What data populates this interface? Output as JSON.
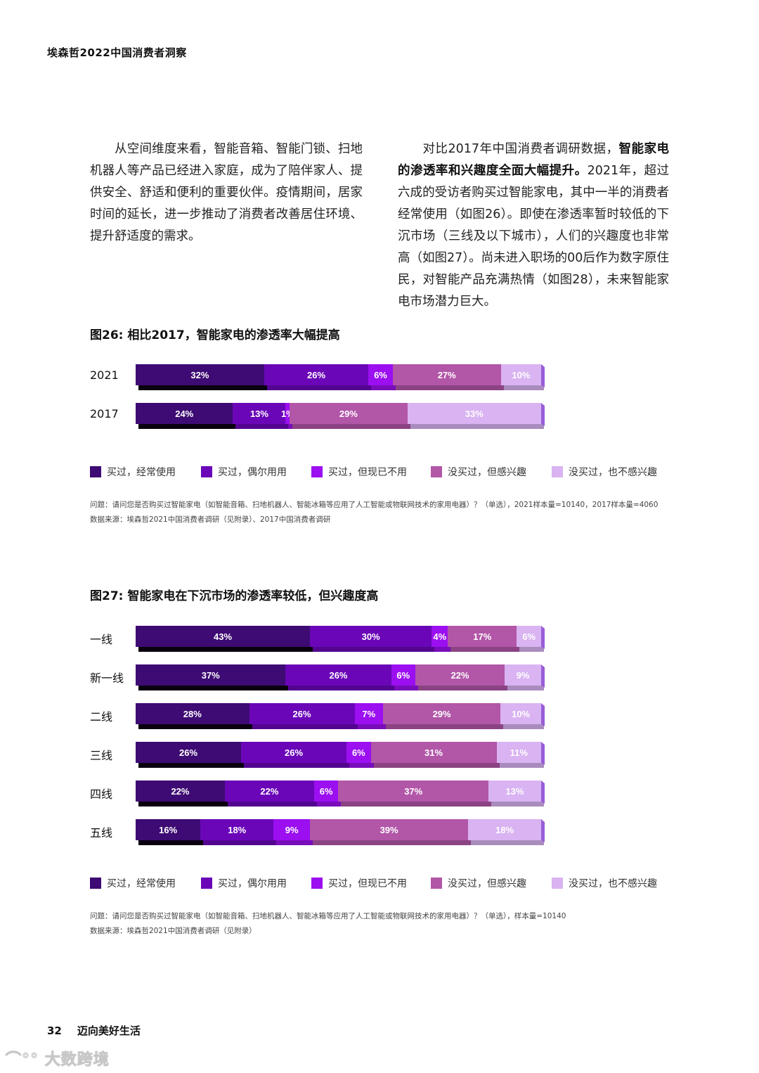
{
  "header": {
    "title": "埃森哲2022中国消费者洞察"
  },
  "body_text": {
    "left": "从空间维度来看，智能音箱、智能门锁、扫地机器人等产品已经进入家庭，成为了陪伴家人、提供安全、舒适和便利的重要伙伴。疫情期间，居家时间的延长，进一步推动了消费者改善居住环境、提升舒适度的需求。",
    "right_pre": "对比2017年中国消费者调研数据，",
    "right_bold": "智能家电的渗透率和兴趣度全面大幅提升。",
    "right_post": "2021年，超过六成的受访者购买过智能家电，其中一半的消费者经常使用（如图26）。即使在渗透率暂时较低的下沉市场（三线及以下城市），人们的兴趣度也非常高（如图27）。尚未进入职场的00后作为数字原住民，对智能产品充满热情（如图28），未来智能家电市场潜力巨大。"
  },
  "legend": {
    "items": [
      {
        "label": "买过，经常使用",
        "color": "#3d0b73"
      },
      {
        "label": "买过，偶尔用用",
        "color": "#6a06b8"
      },
      {
        "label": "买过，但现已不用",
        "color": "#9b0ff0"
      },
      {
        "label": "没买过，但感兴趣",
        "color": "#b256a8"
      },
      {
        "label": "没买过，也不感兴趣",
        "color": "#d9b3f2"
      }
    ]
  },
  "figure26": {
    "title": "图26: 相比2017，智能家电的渗透率大幅提高",
    "note_question": "问题：请问您是否购买过智能家电（如智能音箱、扫地机器人、智能冰箱等应用了人工智能或物联网技术的家用电器）？（单选），2021样本量=10140，2017样本量=4060",
    "note_source": "数据来源：埃森哲2021中国消费者调研（见附录）、2017中国消费者调研"
  },
  "figure27": {
    "title": "图27: 智能家电在下沉市场的渗透率较低，但兴趣度高",
    "note_question": "问题：请问您是否购买过智能家电（如智能音箱、扫地机器人、智能冰箱等应用了人工智能或物联网技术的家用电器）？（单选），样本量=10140",
    "note_source": "数据来源：埃森哲2021中国消费者调研（见附录）"
  },
  "chart_data": [
    {
      "type": "bar",
      "orientation": "horizontal",
      "stacked": true,
      "title": "图26: 相比2017，智能家电的渗透率大幅提高",
      "categories": [
        "2021",
        "2017"
      ],
      "series": [
        {
          "name": "买过，经常使用",
          "color": "#3d0b73",
          "values": [
            32,
            24
          ]
        },
        {
          "name": "买过，偶尔用用",
          "color": "#6a06b8",
          "values": [
            26,
            13
          ]
        },
        {
          "name": "买过，但现已不用",
          "color": "#9b0ff0",
          "values": [
            6,
            1
          ]
        },
        {
          "name": "没买过，但感兴趣",
          "color": "#b256a8",
          "values": [
            27,
            29
          ]
        },
        {
          "name": "没买过，也不感兴趣",
          "color": "#d9b3f2",
          "values": [
            10,
            33
          ]
        }
      ],
      "unit": "%",
      "xlabel": "",
      "ylabel": "",
      "legend_position": "bottom",
      "grid": false
    },
    {
      "type": "bar",
      "orientation": "horizontal",
      "stacked": true,
      "title": "图27: 智能家电在下沉市场的渗透率较低，但兴趣度高",
      "categories": [
        "一线",
        "新一线",
        "二线",
        "三线",
        "四线",
        "五线"
      ],
      "series": [
        {
          "name": "买过，经常使用",
          "color": "#3d0b73",
          "values": [
            43,
            37,
            28,
            26,
            22,
            16
          ]
        },
        {
          "name": "买过，偶尔用用",
          "color": "#6a06b8",
          "values": [
            30,
            26,
            26,
            26,
            22,
            18
          ]
        },
        {
          "name": "买过，但现已不用",
          "color": "#9b0ff0",
          "values": [
            4,
            6,
            7,
            6,
            6,
            9
          ]
        },
        {
          "name": "没买过，但感兴趣",
          "color": "#b256a8",
          "values": [
            17,
            22,
            29,
            31,
            37,
            39
          ]
        },
        {
          "name": "没买过，也不感兴趣",
          "color": "#d9b3f2",
          "values": [
            6,
            9,
            10,
            11,
            13,
            18
          ]
        }
      ],
      "unit": "%",
      "xlabel": "",
      "ylabel": "",
      "legend_position": "bottom",
      "grid": false
    }
  ],
  "footer": {
    "page_number": "32",
    "section": "迈向美好生活"
  },
  "watermark": {
    "text": "大数跨境"
  }
}
